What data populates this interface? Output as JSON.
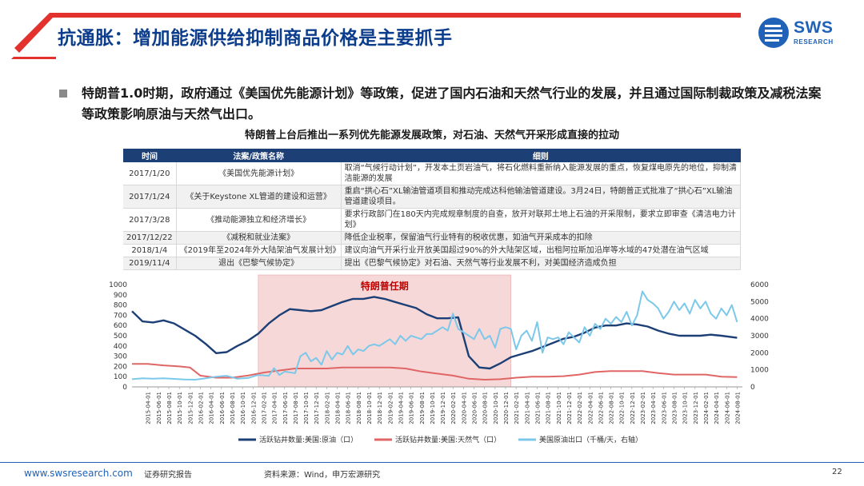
{
  "header": {
    "title": "抗通胀：增加能源供给抑制商品价格是主要抓手",
    "logo_text": "SWS",
    "logo_sub": "RESEARCH"
  },
  "bullet": {
    "text": "特朗普1.0时期，政府通过《美国优先能源计划》等政策，促进了国内石油和天然气行业的发展，并且通过国际制裁政策及减税法案等政策影响原油与天然气出口。"
  },
  "table": {
    "caption": "特朗普上台后推出一系列优先能源发展政策，对石油、天然气开采形成直接的拉动",
    "headers": [
      "时间",
      "法案/政策名称",
      "细则"
    ],
    "rows": [
      [
        "2017/1/20",
        "《美国优先能源计划》",
        "取消“气候行动计划”，开发本土页岩油气，将石化燃料重新纳入能源发展的重点，恢复煤电原先的地位，抑制清洁能源的发展"
      ],
      [
        "2017/1/24",
        "《关于Keystone XL管道的建设和运营》",
        "重启“拱心石”XL输油管道项目和推动完成达科他输油管道建设。3月24日，特朗普正式批准了“拱心石”XL输油管道建设项目。"
      ],
      [
        "2017/3/28",
        "《推动能源独立和经济增长》",
        "要求行政部门在180天内完成规章制度的自查，放开对联邦土地上石油的开采限制，要求立即审查《清洁电力计划》"
      ],
      [
        "2017/12/22",
        "《减税和就业法案》",
        "降低企业税率，保留油气行业特有的税收优惠，如油气开采成本的扣除"
      ],
      [
        "2018/1/4",
        "《2019年至2024年外大陆架油气发展计划》",
        "建议向油气开采行业开放美国超过90%的外大陆架区域，出租阿拉斯加沿岸等水域的47处潜在油气区域"
      ],
      [
        "2019/11/4",
        "退出《巴黎气候协定》",
        "提出《巴黎气候协定》对石油、天然气等行业发展不利，对美国经济造成负担"
      ]
    ]
  },
  "chart_data": {
    "type": "line",
    "annotation": "特朗普任期",
    "shaded_range": [
      "2017-01",
      "2021-01"
    ],
    "x_ticks": [
      "2015-04-01",
      "2015-06-01",
      "2015-08-01",
      "2015-10-01",
      "2015-12-01",
      "2016-02-01",
      "2016-04-01",
      "2016-06-01",
      "2016-08-01",
      "2016-10-01",
      "2016-12-01",
      "2017-02-01",
      "2017-04-01",
      "2017-06-01",
      "2017-08-01",
      "2017-10-01",
      "2017-12-01",
      "2018-02-01",
      "2018-04-01",
      "2018-06-01",
      "2018-08-01",
      "2018-10-01",
      "2018-12-01",
      "2019-02-01",
      "2019-04-01",
      "2019-06-01",
      "2019-08-01",
      "2019-10-01",
      "2019-12-01",
      "2020-02-01",
      "2020-04-01",
      "2020-06-01",
      "2020-08-01",
      "2020-10-01",
      "2020-12-01",
      "2021-02-01",
      "2021-04-01",
      "2021-06-01",
      "2021-08-01",
      "2021-10-01",
      "2021-12-01",
      "2022-02-01",
      "2022-04-01",
      "2022-06-01",
      "2022-08-01",
      "2022-10-01",
      "2022-12-01",
      "2023-02-01",
      "2023-04-01",
      "2023-06-01",
      "2023-08-01",
      "2023-10-01",
      "2023-12-01",
      "2024-02-01",
      "2024-04-01",
      "2024-06-01",
      "2024-08-01"
    ],
    "y_left": {
      "ticks": [
        0,
        100,
        200,
        300,
        400,
        500,
        600,
        700,
        800,
        900,
        1000
      ],
      "lim": [
        0,
        1000
      ]
    },
    "y_right": {
      "ticks": [
        0,
        1000,
        2000,
        3000,
        4000,
        5000,
        6000
      ],
      "lim": [
        0,
        6000
      ]
    },
    "series": [
      {
        "name": "活跃钻井数量:美国:原油（口）",
        "axis": "left",
        "color": "#1c3f76",
        "points": [
          [
            "2015-01",
            740
          ],
          [
            "2015-03",
            640
          ],
          [
            "2015-05",
            630
          ],
          [
            "2015-07",
            650
          ],
          [
            "2015-09",
            620
          ],
          [
            "2015-11",
            560
          ],
          [
            "2016-01",
            500
          ],
          [
            "2016-03",
            420
          ],
          [
            "2016-05",
            330
          ],
          [
            "2016-07",
            340
          ],
          [
            "2016-09",
            400
          ],
          [
            "2016-11",
            450
          ],
          [
            "2017-01",
            520
          ],
          [
            "2017-03",
            620
          ],
          [
            "2017-05",
            700
          ],
          [
            "2017-07",
            760
          ],
          [
            "2017-09",
            750
          ],
          [
            "2017-11",
            740
          ],
          [
            "2018-01",
            750
          ],
          [
            "2018-03",
            790
          ],
          [
            "2018-05",
            830
          ],
          [
            "2018-07",
            860
          ],
          [
            "2018-09",
            860
          ],
          [
            "2018-11",
            880
          ],
          [
            "2019-01",
            860
          ],
          [
            "2019-03",
            830
          ],
          [
            "2019-05",
            800
          ],
          [
            "2019-07",
            770
          ],
          [
            "2019-09",
            710
          ],
          [
            "2019-11",
            670
          ],
          [
            "2020-01",
            670
          ],
          [
            "2020-03",
            680
          ],
          [
            "2020-05",
            300
          ],
          [
            "2020-07",
            190
          ],
          [
            "2020-09",
            180
          ],
          [
            "2020-11",
            230
          ],
          [
            "2021-01",
            290
          ],
          [
            "2021-03",
            320
          ],
          [
            "2021-05",
            350
          ],
          [
            "2021-07",
            390
          ],
          [
            "2021-09",
            430
          ],
          [
            "2021-11",
            470
          ],
          [
            "2022-01",
            490
          ],
          [
            "2022-03",
            530
          ],
          [
            "2022-05",
            580
          ],
          [
            "2022-07",
            600
          ],
          [
            "2022-09",
            600
          ],
          [
            "2022-11",
            620
          ],
          [
            "2023-01",
            610
          ],
          [
            "2023-03",
            590
          ],
          [
            "2023-05",
            550
          ],
          [
            "2023-07",
            520
          ],
          [
            "2023-09",
            500
          ],
          [
            "2023-11",
            500
          ],
          [
            "2024-01",
            500
          ],
          [
            "2024-03",
            510
          ],
          [
            "2024-05",
            500
          ],
          [
            "2024-08",
            480
          ]
        ]
      },
      {
        "name": "活跃钻井数量:美国:天然气（口）",
        "axis": "left",
        "color": "#e06666",
        "points": [
          [
            "2015-01",
            225
          ],
          [
            "2015-04",
            225
          ],
          [
            "2015-07",
            210
          ],
          [
            "2015-10",
            200
          ],
          [
            "2015-12",
            190
          ],
          [
            "2016-02",
            110
          ],
          [
            "2016-05",
            90
          ],
          [
            "2016-08",
            90
          ],
          [
            "2016-11",
            110
          ],
          [
            "2017-02",
            140
          ],
          [
            "2017-05",
            160
          ],
          [
            "2017-08",
            180
          ],
          [
            "2017-11",
            180
          ],
          [
            "2018-02",
            180
          ],
          [
            "2018-05",
            190
          ],
          [
            "2018-08",
            190
          ],
          [
            "2018-11",
            190
          ],
          [
            "2019-02",
            190
          ],
          [
            "2019-05",
            180
          ],
          [
            "2019-08",
            150
          ],
          [
            "2019-11",
            130
          ],
          [
            "2020-02",
            110
          ],
          [
            "2020-05",
            80
          ],
          [
            "2020-08",
            70
          ],
          [
            "2020-11",
            75
          ],
          [
            "2021-02",
            90
          ],
          [
            "2021-05",
            100
          ],
          [
            "2021-08",
            100
          ],
          [
            "2021-11",
            105
          ],
          [
            "2022-02",
            120
          ],
          [
            "2022-05",
            145
          ],
          [
            "2022-08",
            155
          ],
          [
            "2022-11",
            155
          ],
          [
            "2023-02",
            155
          ],
          [
            "2023-05",
            135
          ],
          [
            "2023-08",
            120
          ],
          [
            "2023-11",
            120
          ],
          [
            "2024-02",
            120
          ],
          [
            "2024-05",
            100
          ],
          [
            "2024-08",
            95
          ]
        ]
      },
      {
        "name": "美国原油出口（千桶/天，右轴）",
        "axis": "right",
        "color": "#7cc8ea",
        "points": [
          [
            "2015-01",
            450
          ],
          [
            "2015-03",
            500
          ],
          [
            "2015-05",
            480
          ],
          [
            "2015-07",
            500
          ],
          [
            "2015-09",
            470
          ],
          [
            "2015-11",
            430
          ],
          [
            "2016-01",
            420
          ],
          [
            "2016-03",
            500
          ],
          [
            "2016-05",
            600
          ],
          [
            "2016-07",
            650
          ],
          [
            "2016-09",
            480
          ],
          [
            "2016-11",
            520
          ],
          [
            "2017-01",
            700
          ],
          [
            "2017-03",
            650
          ],
          [
            "2017-04",
            1100
          ],
          [
            "2017-05",
            700
          ],
          [
            "2017-06",
            900
          ],
          [
            "2017-08",
            800
          ],
          [
            "2017-09",
            1800
          ],
          [
            "2017-10",
            2000
          ],
          [
            "2017-11",
            1500
          ],
          [
            "2017-12",
            1700
          ],
          [
            "2018-01",
            1300
          ],
          [
            "2018-02",
            2100
          ],
          [
            "2018-03",
            1600
          ],
          [
            "2018-04",
            2000
          ],
          [
            "2018-05",
            1900
          ],
          [
            "2018-06",
            2400
          ],
          [
            "2018-07",
            1900
          ],
          [
            "2018-08",
            2200
          ],
          [
            "2018-09",
            2100
          ],
          [
            "2018-10",
            2400
          ],
          [
            "2018-11",
            2500
          ],
          [
            "2018-12",
            2400
          ],
          [
            "2019-01",
            2600
          ],
          [
            "2019-02",
            2800
          ],
          [
            "2019-03",
            2500
          ],
          [
            "2019-04",
            3000
          ],
          [
            "2019-05",
            2700
          ],
          [
            "2019-06",
            3000
          ],
          [
            "2019-07",
            2900
          ],
          [
            "2019-08",
            2800
          ],
          [
            "2019-09",
            3100
          ],
          [
            "2019-10",
            3100
          ],
          [
            "2019-11",
            3300
          ],
          [
            "2019-12",
            3500
          ],
          [
            "2020-01",
            3300
          ],
          [
            "2020-02",
            4300
          ],
          [
            "2020-03",
            3400
          ],
          [
            "2020-04",
            3200
          ],
          [
            "2020-05",
            3000
          ],
          [
            "2020-06",
            2800
          ],
          [
            "2020-07",
            3400
          ],
          [
            "2020-08",
            2800
          ],
          [
            "2020-09",
            3000
          ],
          [
            "2020-10",
            2300
          ],
          [
            "2020-11",
            3400
          ],
          [
            "2020-12",
            3500
          ],
          [
            "2021-01",
            3400
          ],
          [
            "2021-02",
            2200
          ],
          [
            "2021-03",
            3000
          ],
          [
            "2021-04",
            3300
          ],
          [
            "2021-05",
            2700
          ],
          [
            "2021-06",
            3800
          ],
          [
            "2021-07",
            2000
          ],
          [
            "2021-08",
            2900
          ],
          [
            "2021-09",
            2800
          ],
          [
            "2021-10",
            2900
          ],
          [
            "2021-11",
            2500
          ],
          [
            "2021-12",
            3200
          ],
          [
            "2022-01",
            2900
          ],
          [
            "2022-02",
            2600
          ],
          [
            "2022-03",
            3500
          ],
          [
            "2022-04",
            3000
          ],
          [
            "2022-05",
            3700
          ],
          [
            "2022-06",
            3400
          ],
          [
            "2022-07",
            4000
          ],
          [
            "2022-08",
            3700
          ],
          [
            "2022-09",
            4100
          ],
          [
            "2022-10",
            3800
          ],
          [
            "2022-11",
            4400
          ],
          [
            "2022-12",
            3600
          ],
          [
            "2023-01",
            4200
          ],
          [
            "2023-02",
            5600
          ],
          [
            "2023-03",
            5100
          ],
          [
            "2023-04",
            4900
          ],
          [
            "2023-05",
            4600
          ],
          [
            "2023-06",
            4000
          ],
          [
            "2023-07",
            4400
          ],
          [
            "2023-08",
            5000
          ],
          [
            "2023-09",
            4500
          ],
          [
            "2023-10",
            4900
          ],
          [
            "2023-11",
            4300
          ],
          [
            "2023-12",
            5100
          ],
          [
            "2024-01",
            4600
          ],
          [
            "2024-02",
            5000
          ],
          [
            "2024-03",
            4300
          ],
          [
            "2024-04",
            4000
          ],
          [
            "2024-05",
            4600
          ],
          [
            "2024-06",
            4200
          ],
          [
            "2024-07",
            4800
          ],
          [
            "2024-08",
            3800
          ]
        ]
      }
    ]
  },
  "footer": {
    "url": "www.swsresearch.com",
    "report_type": "证券研究报告",
    "source": "资料来源：Wind，申万宏源研究",
    "page": "22"
  },
  "colors": {
    "brand_blue": "#1f62b8",
    "title_blue": "#0b3d8c",
    "accent_red": "#e3322d",
    "table_header": "#1c3f76",
    "shade": "#f6d8d8"
  }
}
